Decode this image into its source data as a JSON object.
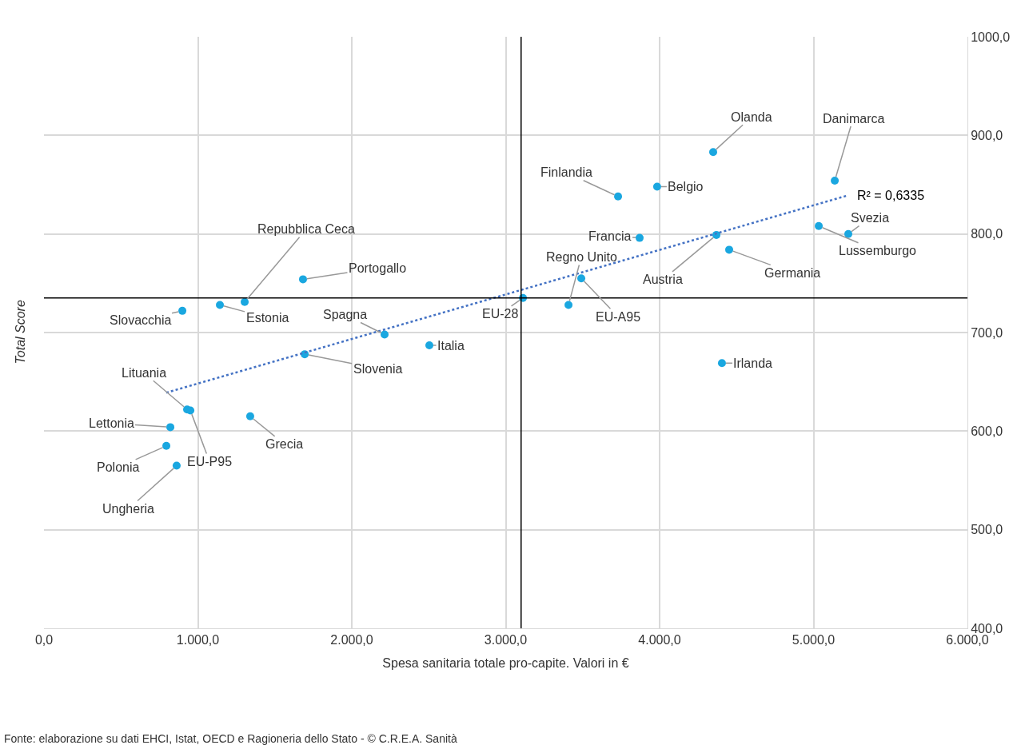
{
  "chart_data": {
    "type": "scatter",
    "xlabel": "Spesa sanitaria totale pro-capite. Valori in €",
    "ylabel": "Total Score",
    "xlim": [
      0,
      6000
    ],
    "ylim": [
      400,
      1000
    ],
    "xticks": [
      {
        "value": 0,
        "label": "0,0"
      },
      {
        "value": 1000,
        "label": "1.000,0"
      },
      {
        "value": 2000,
        "label": "2.000,0"
      },
      {
        "value": 3000,
        "label": "3.000,0"
      },
      {
        "value": 4000,
        "label": "4.000,0"
      },
      {
        "value": 5000,
        "label": "5.000,0"
      },
      {
        "value": 6000,
        "label": "6.000,0"
      }
    ],
    "yticks": [
      {
        "value": 400,
        "label": "400,0"
      },
      {
        "value": 500,
        "label": "500,0"
      },
      {
        "value": 600,
        "label": "600,0"
      },
      {
        "value": 700,
        "label": "700,0"
      },
      {
        "value": 800,
        "label": "800,0"
      },
      {
        "value": 900,
        "label": "900,0"
      },
      {
        "value": 1000,
        "label": "1000,0"
      }
    ],
    "grid": true,
    "marker": "circle",
    "series": [
      {
        "color": "#1aa7e0",
        "x": [
          4348,
          5138,
          3730,
          3984,
          5226,
          5034,
          3870,
          4369,
          4452,
          1683,
          1304,
          1143,
          899,
          3112,
          3408,
          3491,
          2213,
          2504,
          1694,
          4405,
          930,
          951,
          1340,
          821,
          795,
          862
        ],
        "values": [
          883,
          854,
          838,
          848,
          800,
          808,
          796,
          799,
          784,
          754,
          731,
          728,
          722,
          735,
          728,
          755,
          698,
          687,
          678,
          669,
          622,
          621,
          615,
          604,
          585,
          565
        ]
      },
      {
        "type": "line",
        "color": "#4472c4",
        "line_style": "dotted",
        "marker": "none",
        "x": [
          795,
          5221
        ],
        "values": [
          639,
          839
        ]
      }
    ],
    "ref_lines": [
      {
        "axis": "x",
        "value": 3100,
        "color": "#000000"
      },
      {
        "axis": "y",
        "value": 735,
        "color": "#000000"
      }
    ],
    "annotations": [
      {
        "text": "Olanda",
        "x": 4348,
        "y": 883
      },
      {
        "text": "Danimarca",
        "x": 5138,
        "y": 854
      },
      {
        "text": "Finlandia",
        "x": 3730,
        "y": 838
      },
      {
        "text": "Belgio",
        "x": 3984,
        "y": 848
      },
      {
        "text": "Svezia",
        "x": 5226,
        "y": 800
      },
      {
        "text": "Lussemburgo",
        "x": 5034,
        "y": 808
      },
      {
        "text": "Francia",
        "x": 3870,
        "y": 796
      },
      {
        "text": "Austria",
        "x": 4369,
        "y": 799
      },
      {
        "text": "Germania",
        "x": 4452,
        "y": 784
      },
      {
        "text": "Portogallo",
        "x": 1683,
        "y": 754
      },
      {
        "text": "Repubblica Ceca",
        "x": 1304,
        "y": 731
      },
      {
        "text": "Estonia",
        "x": 1143,
        "y": 728
      },
      {
        "text": "Slovacchia",
        "x": 899,
        "y": 722
      },
      {
        "text": "EU-28",
        "x": 3112,
        "y": 735
      },
      {
        "text": "Regno Unito",
        "x": 3408,
        "y": 728
      },
      {
        "text": "EU-A95",
        "x": 3491,
        "y": 755
      },
      {
        "text": "Spagna",
        "x": 2213,
        "y": 698
      },
      {
        "text": "Italia",
        "x": 2504,
        "y": 687
      },
      {
        "text": "Slovenia",
        "x": 1694,
        "y": 678
      },
      {
        "text": "Irlanda",
        "x": 4405,
        "y": 669
      },
      {
        "text": "Lituania",
        "x": 930,
        "y": 622
      },
      {
        "text": "EU-P95",
        "x": 951,
        "y": 621
      },
      {
        "text": "Grecia",
        "x": 1340,
        "y": 615
      },
      {
        "text": "Lettonia",
        "x": 821,
        "y": 604
      },
      {
        "text": "Polonia",
        "x": 795,
        "y": 585
      },
      {
        "text": "Ungheria",
        "x": 862,
        "y": 565
      },
      {
        "text": "R² = 0,6335",
        "x": 5221,
        "y": 839
      },
      "Fonte: elaborazione su dati EHCI, Istat, OECD e Ragioneria dello Stato - © C.R.E.A. Sanità"
    ]
  }
}
